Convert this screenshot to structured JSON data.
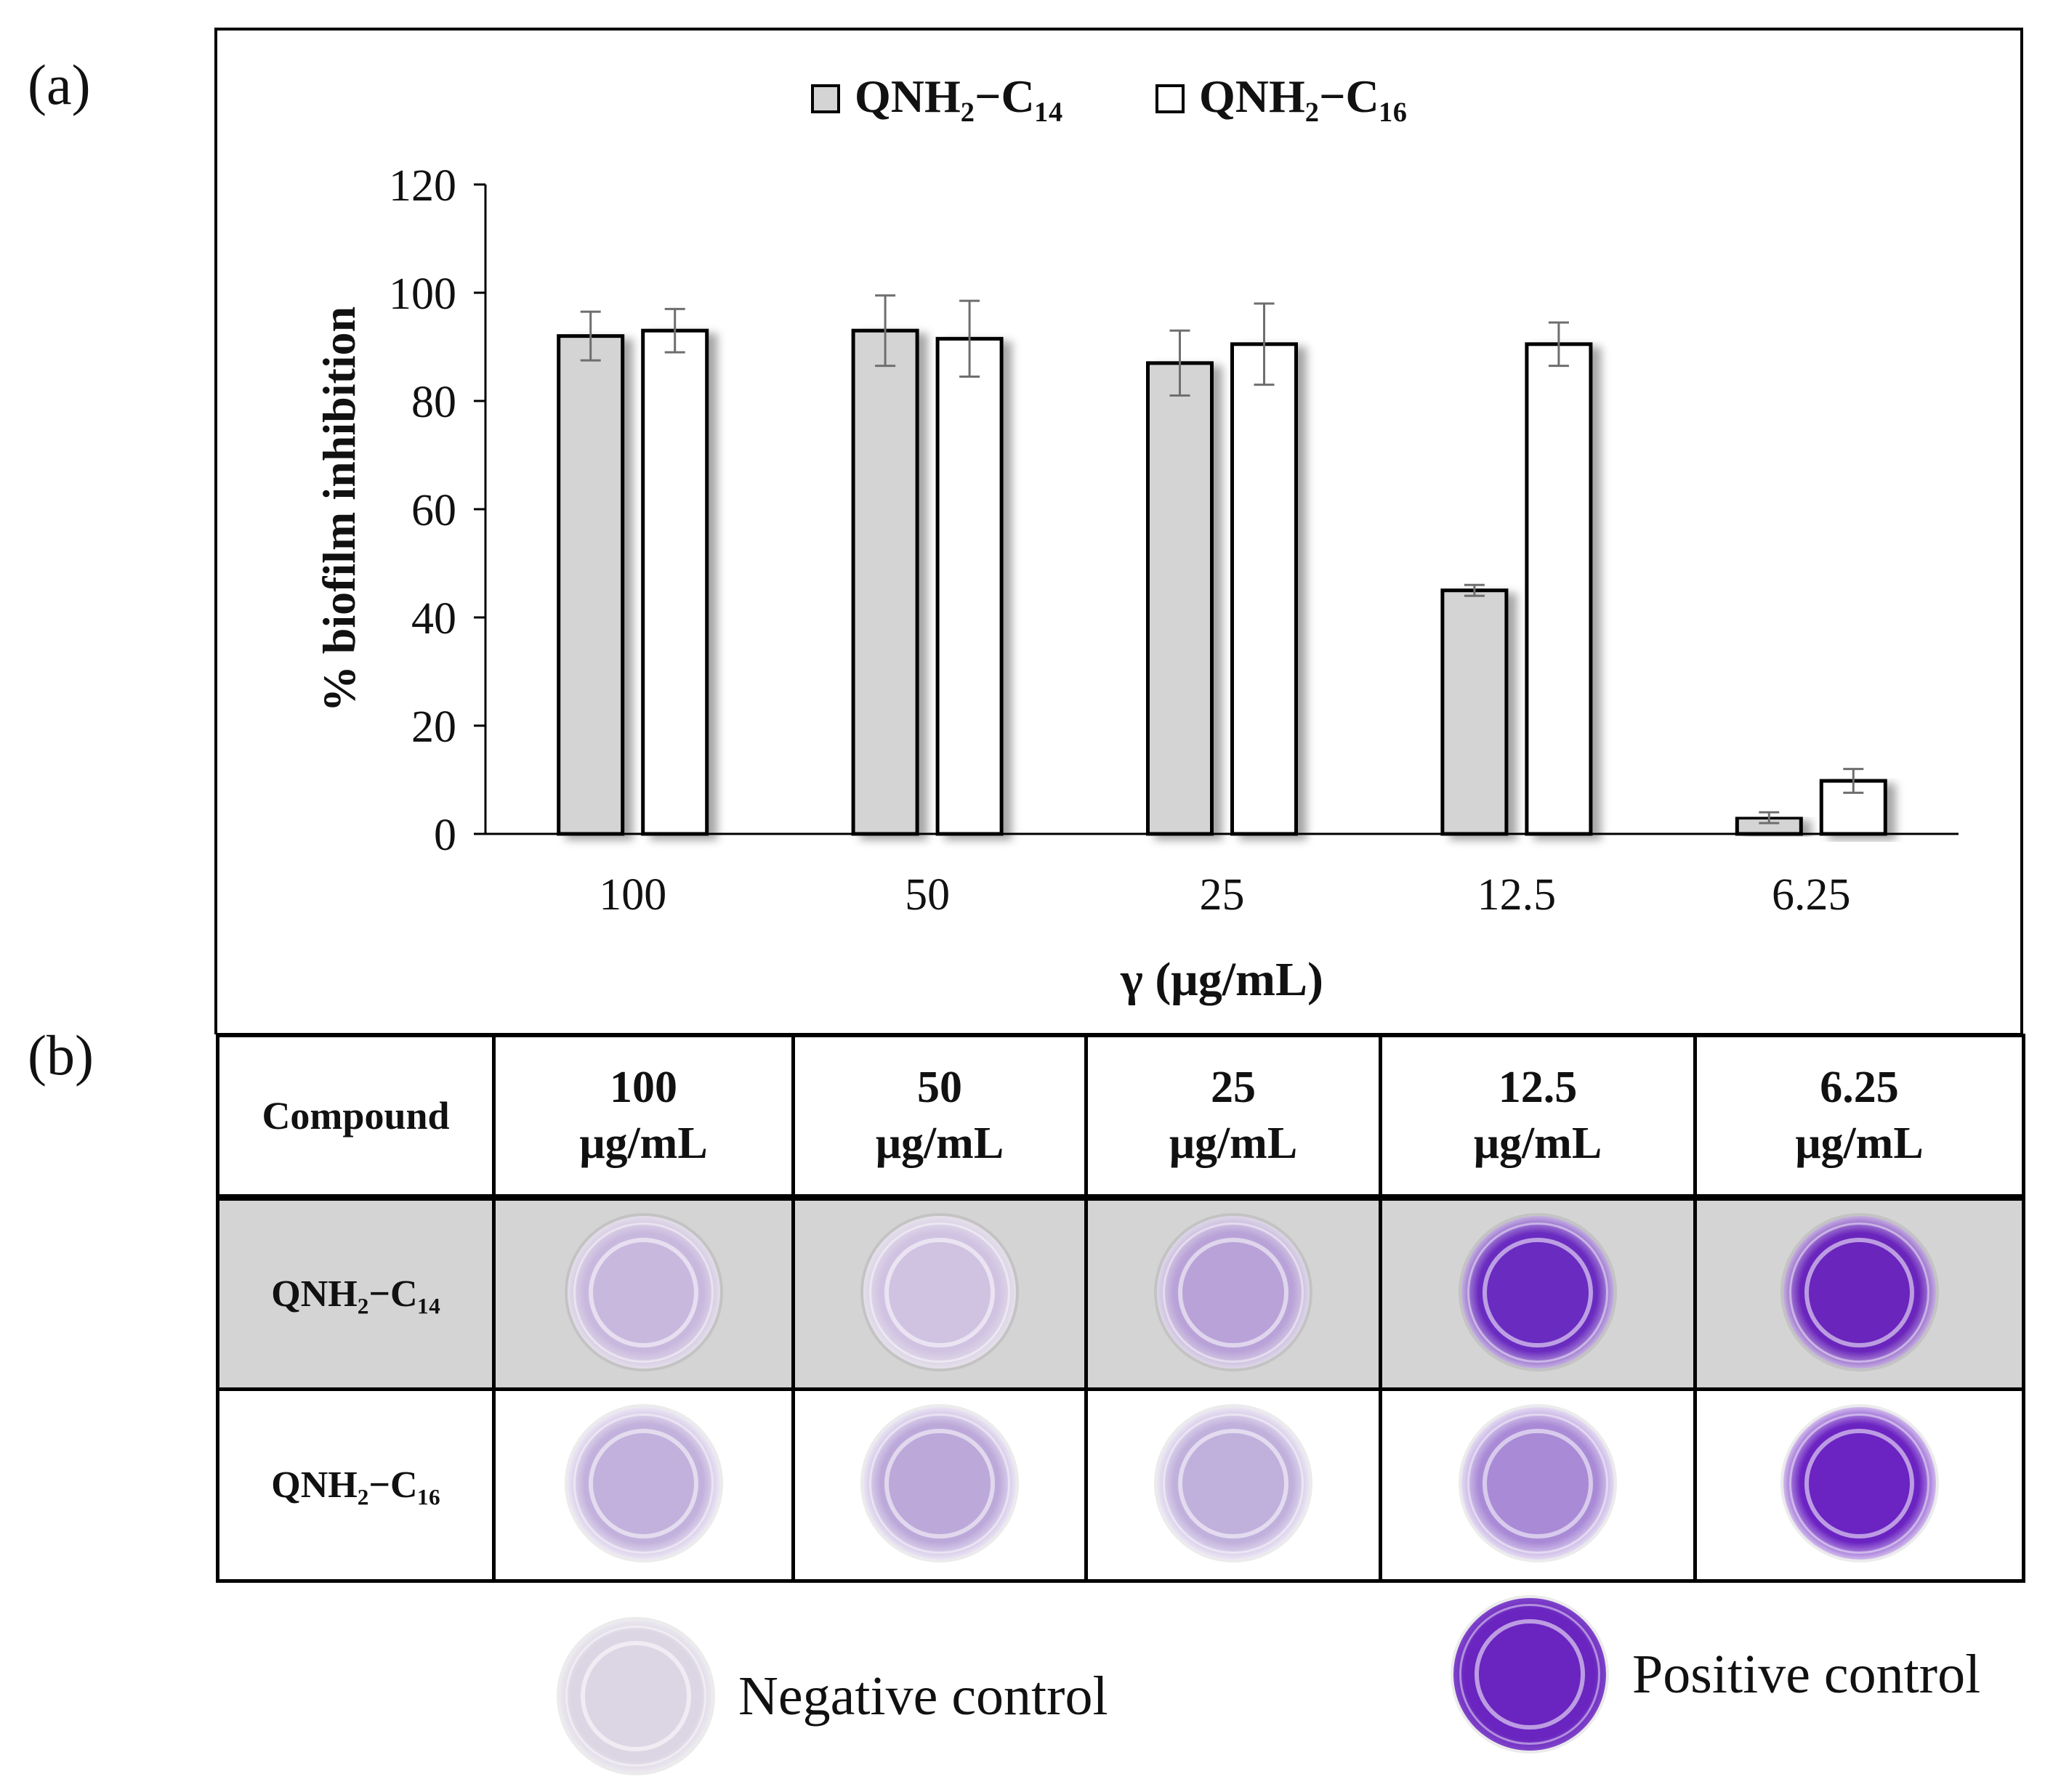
{
  "panel_a_label": "(a)",
  "panel_b_label": "(b)",
  "chart_data": {
    "type": "bar",
    "categories": [
      "100",
      "50",
      "25",
      "12.5",
      "6.25"
    ],
    "series": [
      {
        "name": "QNH₂−C₁₄",
        "color": "#d4d4d4",
        "values": [
          92,
          93,
          87,
          45,
          3
        ],
        "errors": [
          4.5,
          6.5,
          6,
          1,
          1
        ]
      },
      {
        "name": "QNH₂−C₁₆",
        "color": "#ffffff",
        "values": [
          93,
          91.5,
          90.5,
          90.5,
          9.8
        ],
        "errors": [
          4,
          7,
          7.5,
          4,
          2.2
        ]
      }
    ],
    "xlabel": "γ (μg/mL)",
    "ylabel": "% biofilm inhibition",
    "ylim": [
      0,
      120
    ],
    "yticks": [
      "0",
      "20",
      "40",
      "60",
      "80",
      "100",
      "120"
    ],
    "legend_position": "top-center"
  },
  "table": {
    "header_compound": "Compound",
    "columns": [
      {
        "value": "100",
        "unit": "μg/mL"
      },
      {
        "value": "50",
        "unit": "μg/mL"
      },
      {
        "value": "25",
        "unit": "μg/mL"
      },
      {
        "value": "12.5",
        "unit": "μg/mL"
      },
      {
        "value": "6.25",
        "unit": "μg/mL"
      }
    ],
    "rows": [
      {
        "label": "QNH₂−C₁₄",
        "wells": [
          "#c9b8de",
          "#d0c3e2",
          "#b9a2d8",
          "#6a2bc0",
          "#6a25bc"
        ]
      },
      {
        "label": "QNH₂−C₁₆",
        "wells": [
          "#c2b1dc",
          "#bca9da",
          "#c0b0dc",
          "#a98ad6",
          "#6b23c2"
        ]
      }
    ]
  },
  "controls": {
    "negative_label": "Negative control",
    "negative_color": "#dcd6e4",
    "positive_label": "Positive control",
    "positive_color": "#6a24bf"
  }
}
